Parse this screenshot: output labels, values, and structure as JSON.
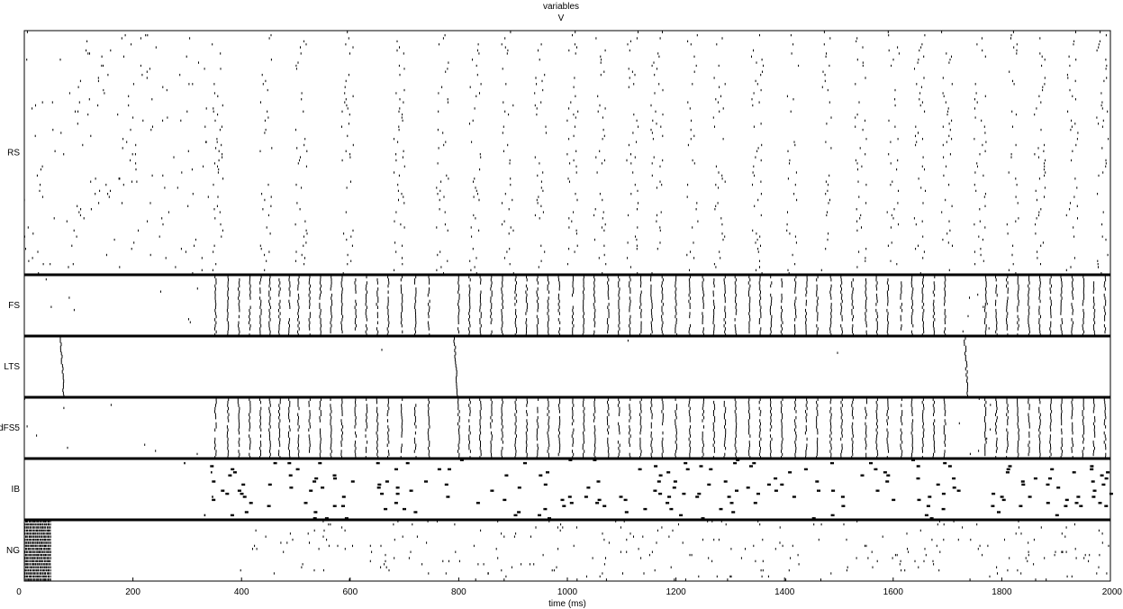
{
  "chart_data": {
    "type": "scatter",
    "title": "variables",
    "subtitle": "V",
    "xlabel": "time (ms)",
    "xlim": [
      0,
      2000
    ],
    "xticks": [
      0,
      200,
      400,
      600,
      800,
      1000,
      1200,
      1400,
      1600,
      1800,
      2000
    ],
    "grid": false,
    "populations": [
      {
        "name": "RS",
        "cells": 80,
        "bursts": [
          355,
          445,
          510,
          595,
          690,
          770,
          830,
          890,
          950,
          1010,
          1060,
          1120,
          1165,
          1230,
          1280,
          1350,
          1415,
          1475,
          1540,
          1600,
          1650,
          1700,
          1760,
          1820,
          1870,
          1930,
          1985
        ]
      },
      {
        "name": "FS",
        "cells": 20,
        "bursts": [
          352,
          375,
          395,
          415,
          435,
          452,
          470,
          488,
          505,
          525,
          545,
          565,
          585,
          610,
          630,
          650,
          670,
          695,
          720,
          745,
          800,
          820,
          840,
          860,
          880,
          905,
          925,
          945,
          965,
          985,
          1010,
          1030,
          1050,
          1075,
          1095,
          1115,
          1135,
          1155,
          1175,
          1200,
          1225,
          1250,
          1270,
          1290,
          1310,
          1335,
          1355,
          1375,
          1395,
          1420,
          1440,
          1460,
          1485,
          1505,
          1525,
          1550,
          1570,
          1590,
          1615,
          1635,
          1655,
          1675,
          1695,
          1770,
          1790,
          1810,
          1830,
          1850,
          1870,
          1890,
          1910,
          1930,
          1950,
          1970,
          1990
        ]
      },
      {
        "name": "LTS",
        "cells": 20,
        "bursts": [
          70,
          795,
          1735
        ]
      },
      {
        "name": "dFS5",
        "cells": 20,
        "bursts": [
          352,
          375,
          395,
          415,
          435,
          452,
          470,
          488,
          505,
          525,
          545,
          565,
          585,
          610,
          630,
          650,
          670,
          695,
          720,
          745,
          800,
          820,
          840,
          860,
          880,
          905,
          925,
          945,
          965,
          985,
          1010,
          1030,
          1050,
          1075,
          1095,
          1115,
          1135,
          1155,
          1175,
          1200,
          1225,
          1250,
          1270,
          1290,
          1310,
          1335,
          1355,
          1375,
          1395,
          1420,
          1440,
          1460,
          1485,
          1505,
          1525,
          1550,
          1570,
          1590,
          1615,
          1635,
          1655,
          1675,
          1695,
          1770,
          1790,
          1810,
          1830,
          1850,
          1870,
          1890,
          1910,
          1930,
          1950,
          1970,
          1990
        ]
      },
      {
        "name": "IB",
        "cells": 20,
        "bursts": [
          360,
          400,
          440,
          480,
          520,
          560,
          600,
          650,
          700,
          750,
          790,
          850,
          900,
          950,
          1000,
          1050,
          1100,
          1150,
          1200,
          1250,
          1300,
          1350,
          1400,
          1450,
          1500,
          1550,
          1600,
          1650,
          1700,
          1800,
          1850,
          1900,
          1940,
          1980
        ]
      },
      {
        "name": "NG",
        "cells": 20,
        "bursts": [
          10,
          50
        ]
      }
    ]
  }
}
